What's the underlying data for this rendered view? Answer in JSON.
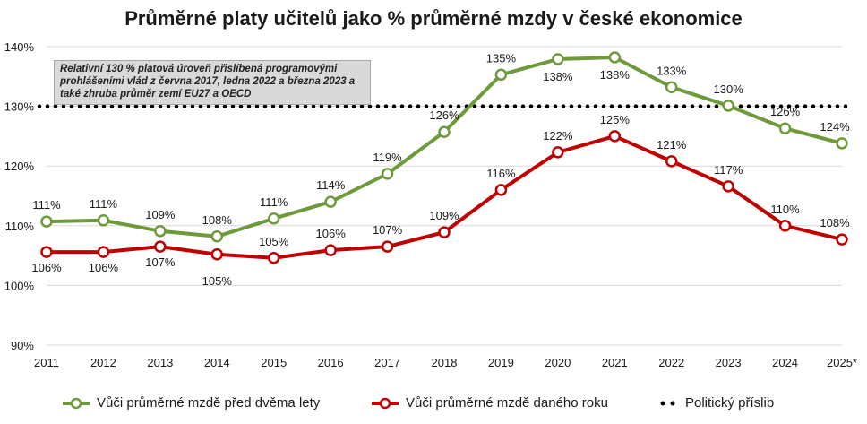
{
  "chart_data": {
    "type": "line",
    "title": "Průměrné platy učitelů jako % průměrné mzdy v české ekonomice",
    "x": [
      "2011",
      "2012",
      "2013",
      "2014",
      "2015",
      "2016",
      "2017",
      "2018",
      "2019",
      "2020",
      "2021",
      "2022",
      "2023",
      "2024",
      "2025*"
    ],
    "ylim": [
      90,
      140
    ],
    "yticks": [
      "90%",
      "100%",
      "110%",
      "120%",
      "130%",
      "140%"
    ],
    "ytick_values": [
      90,
      100,
      110,
      120,
      130,
      140
    ],
    "grid": true,
    "legend_position": "bottom",
    "series": [
      {
        "name": "Vůči průměrné mzdě před dvěma lety",
        "color": "#6e9a3c",
        "values": [
          110.7,
          110.9,
          109.1,
          108.2,
          111.2,
          114.0,
          118.7,
          125.7,
          135.3,
          137.9,
          138.2,
          133.2,
          130.1,
          126.3,
          123.8
        ],
        "labels": [
          "111%",
          "111%",
          "109%",
          "108%",
          "111%",
          "114%",
          "119%",
          "126%",
          "135%",
          "138%",
          "138%",
          "133%",
          "130%",
          "126%",
          "124%"
        ]
      },
      {
        "name": "Vůči průměrné mzdě daného roku",
        "color": "#c00000",
        "values": [
          105.6,
          105.6,
          106.5,
          105.2,
          104.6,
          105.9,
          106.5,
          108.9,
          116.0,
          122.3,
          125.0,
          120.8,
          116.6,
          110.0,
          107.7
        ],
        "labels": [
          "106%",
          "106%",
          "107%",
          "105%",
          "105%",
          "106%",
          "107%",
          "109%",
          "116%",
          "122%",
          "125%",
          "121%",
          "117%",
          "110%",
          "108%"
        ]
      },
      {
        "name": "Politický  příslib",
        "color": "#000000",
        "value": 130
      }
    ],
    "annotation": "Relativní 130 % platová úroveň přislíbená programovými prohlášeními vlád z června 2017, ledna 2022 a března 2023  a také zhruba průměr zemí EU27 a OECD"
  }
}
